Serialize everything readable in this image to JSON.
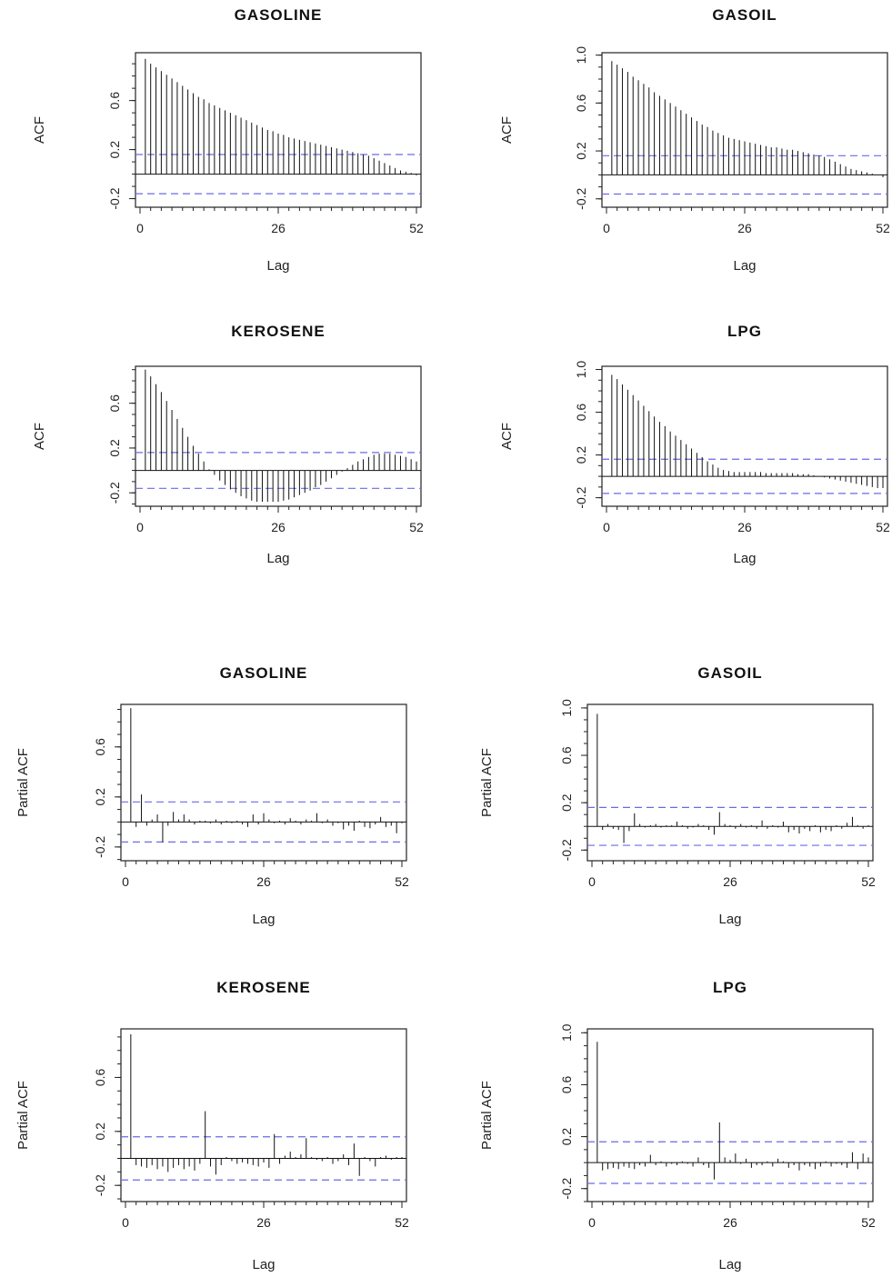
{
  "chart_data": [
    {
      "type": "bar",
      "kind": "ACF",
      "title": "GASOLINE",
      "xlabel": "Lag",
      "ylabel": "ACF",
      "xticks": [
        "0",
        "26",
        "52"
      ],
      "yticks": [
        "-0.2",
        "0.2",
        "0.6"
      ],
      "xlim": [
        0,
        52
      ],
      "ylim": [
        -0.27,
        0.99
      ],
      "ci": 0.16,
      "lags": [
        1,
        2,
        3,
        4,
        5,
        6,
        7,
        8,
        9,
        10,
        11,
        12,
        13,
        14,
        15,
        16,
        17,
        18,
        19,
        20,
        21,
        22,
        23,
        24,
        25,
        26,
        27,
        28,
        29,
        30,
        31,
        32,
        33,
        34,
        35,
        36,
        37,
        38,
        39,
        40,
        41,
        42,
        43,
        44,
        45,
        46,
        47,
        48,
        49,
        50,
        51,
        52
      ],
      "values": [
        0.94,
        0.9,
        0.87,
        0.84,
        0.81,
        0.78,
        0.75,
        0.72,
        0.69,
        0.66,
        0.63,
        0.61,
        0.58,
        0.56,
        0.54,
        0.52,
        0.5,
        0.48,
        0.46,
        0.44,
        0.42,
        0.4,
        0.38,
        0.36,
        0.35,
        0.33,
        0.32,
        0.3,
        0.29,
        0.28,
        0.27,
        0.26,
        0.25,
        0.24,
        0.23,
        0.22,
        0.21,
        0.2,
        0.19,
        0.18,
        0.17,
        0.16,
        0.15,
        0.13,
        0.11,
        0.09,
        0.07,
        0.05,
        0.03,
        0.02,
        0.01,
        -0.01
      ]
    },
    {
      "type": "bar",
      "kind": "ACF",
      "title": "GASOIL",
      "xlabel": "Lag",
      "ylabel": "ACF",
      "xticks": [
        "0",
        "26",
        "52"
      ],
      "yticks": [
        "-0.2",
        "0.2",
        "0.6",
        "1.0"
      ],
      "xlim": [
        0,
        52
      ],
      "ylim": [
        -0.27,
        1.02
      ],
      "ci": 0.16,
      "lags": [
        1,
        2,
        3,
        4,
        5,
        6,
        7,
        8,
        9,
        10,
        11,
        12,
        13,
        14,
        15,
        16,
        17,
        18,
        19,
        20,
        21,
        22,
        23,
        24,
        25,
        26,
        27,
        28,
        29,
        30,
        31,
        32,
        33,
        34,
        35,
        36,
        37,
        38,
        39,
        40,
        41,
        42,
        43,
        44,
        45,
        46,
        47,
        48,
        49,
        50,
        51,
        52
      ],
      "values": [
        0.95,
        0.92,
        0.89,
        0.86,
        0.82,
        0.79,
        0.76,
        0.73,
        0.69,
        0.66,
        0.63,
        0.6,
        0.57,
        0.54,
        0.51,
        0.48,
        0.45,
        0.42,
        0.4,
        0.37,
        0.35,
        0.33,
        0.31,
        0.3,
        0.29,
        0.28,
        0.27,
        0.26,
        0.25,
        0.24,
        0.23,
        0.23,
        0.22,
        0.21,
        0.21,
        0.2,
        0.19,
        0.18,
        0.17,
        0.16,
        0.15,
        0.13,
        0.11,
        0.09,
        0.07,
        0.05,
        0.04,
        0.03,
        0.02,
        0.01,
        0.0,
        -0.02
      ]
    },
    {
      "type": "bar",
      "kind": "ACF",
      "title": "KEROSENE",
      "xlabel": "Lag",
      "ylabel": "ACF",
      "xticks": [
        "0",
        "26",
        "52"
      ],
      "yticks": [
        "-0.2",
        "0.2",
        "0.6"
      ],
      "xlim": [
        0,
        52
      ],
      "ylim": [
        -0.32,
        0.93
      ],
      "ci": 0.16,
      "lags": [
        1,
        2,
        3,
        4,
        5,
        6,
        7,
        8,
        9,
        10,
        11,
        12,
        13,
        14,
        15,
        16,
        17,
        18,
        19,
        20,
        21,
        22,
        23,
        24,
        25,
        26,
        27,
        28,
        29,
        30,
        31,
        32,
        33,
        34,
        35,
        36,
        37,
        38,
        39,
        40,
        41,
        42,
        43,
        44,
        45,
        46,
        47,
        48,
        49,
        50,
        51,
        52
      ],
      "values": [
        0.9,
        0.84,
        0.77,
        0.7,
        0.62,
        0.54,
        0.46,
        0.38,
        0.3,
        0.22,
        0.15,
        0.08,
        0.01,
        -0.04,
        -0.09,
        -0.13,
        -0.17,
        -0.2,
        -0.23,
        -0.25,
        -0.27,
        -0.28,
        -0.28,
        -0.28,
        -0.28,
        -0.28,
        -0.27,
        -0.26,
        -0.24,
        -0.22,
        -0.2,
        -0.18,
        -0.15,
        -0.13,
        -0.1,
        -0.07,
        -0.04,
        -0.01,
        0.02,
        0.05,
        0.08,
        0.1,
        0.12,
        0.14,
        0.15,
        0.15,
        0.15,
        0.14,
        0.13,
        0.12,
        0.1,
        0.08
      ]
    },
    {
      "type": "bar",
      "kind": "ACF",
      "title": "LPG",
      "xlabel": "Lag",
      "ylabel": "ACF",
      "xticks": [
        "0",
        "26",
        "52"
      ],
      "yticks": [
        "-0.2",
        "0.2",
        "0.6",
        "1.0"
      ],
      "xlim": [
        0,
        52
      ],
      "ylim": [
        -0.28,
        1.03
      ],
      "ci": 0.16,
      "lags": [
        1,
        2,
        3,
        4,
        5,
        6,
        7,
        8,
        9,
        10,
        11,
        12,
        13,
        14,
        15,
        16,
        17,
        18,
        19,
        20,
        21,
        22,
        23,
        24,
        25,
        26,
        27,
        28,
        29,
        30,
        31,
        32,
        33,
        34,
        35,
        36,
        37,
        38,
        39,
        40,
        41,
        42,
        43,
        44,
        45,
        46,
        47,
        48,
        49,
        50,
        51,
        52
      ],
      "values": [
        0.95,
        0.91,
        0.86,
        0.81,
        0.76,
        0.71,
        0.66,
        0.61,
        0.56,
        0.51,
        0.47,
        0.42,
        0.38,
        0.34,
        0.3,
        0.26,
        0.22,
        0.18,
        0.14,
        0.11,
        0.08,
        0.06,
        0.05,
        0.04,
        0.04,
        0.04,
        0.04,
        0.04,
        0.04,
        0.03,
        0.03,
        0.03,
        0.03,
        0.03,
        0.03,
        0.02,
        0.02,
        0.02,
        0.01,
        0.0,
        -0.01,
        -0.02,
        -0.03,
        -0.04,
        -0.05,
        -0.06,
        -0.07,
        -0.08,
        -0.09,
        -0.1,
        -0.11,
        -0.11
      ]
    },
    {
      "type": "bar",
      "kind": "PACF",
      "title": "GASOLINE",
      "xlabel": "Lag",
      "ylabel": "Partial ACF",
      "xticks": [
        "0",
        "26",
        "52"
      ],
      "yticks": [
        "-0.2",
        "0.2",
        "0.6"
      ],
      "xlim": [
        0,
        52
      ],
      "ylim": [
        -0.31,
        0.94
      ],
      "ci": 0.16,
      "lags": [
        1,
        2,
        3,
        4,
        5,
        6,
        7,
        8,
        9,
        10,
        11,
        12,
        13,
        14,
        15,
        16,
        17,
        18,
        19,
        20,
        21,
        22,
        23,
        24,
        25,
        26,
        27,
        28,
        29,
        30,
        31,
        32,
        33,
        34,
        35,
        36,
        37,
        38,
        39,
        40,
        41,
        42,
        43,
        44,
        45,
        46,
        47,
        48,
        49,
        50,
        51,
        52
      ],
      "values": [
        0.91,
        -0.04,
        0.22,
        -0.03,
        0.02,
        0.06,
        -0.16,
        -0.03,
        0.08,
        0.02,
        0.06,
        0.02,
        -0.02,
        0.01,
        0.01,
        -0.01,
        0.02,
        -0.02,
        0.01,
        -0.01,
        0.01,
        -0.02,
        -0.04,
        0.06,
        -0.02,
        0.07,
        0.02,
        -0.01,
        0.01,
        -0.02,
        0.03,
        0.01,
        -0.02,
        0.02,
        0.01,
        0.07,
        -0.01,
        0.02,
        -0.03,
        -0.01,
        -0.06,
        -0.03,
        -0.07,
        0.01,
        -0.04,
        -0.05,
        -0.02,
        0.04,
        -0.04,
        -0.03,
        -0.09,
        -0.01
      ]
    },
    {
      "type": "bar",
      "kind": "PACF",
      "title": "GASOIL",
      "xlabel": "Lag",
      "ylabel": "Partial ACF",
      "xticks": [
        "0",
        "26",
        "52"
      ],
      "yticks": [
        "-0.2",
        "0.2",
        "0.6",
        "1.0"
      ],
      "xlim": [
        0,
        52
      ],
      "ylim": [
        -0.29,
        1.03
      ],
      "ci": 0.16,
      "lags": [
        1,
        2,
        3,
        4,
        5,
        6,
        7,
        8,
        9,
        10,
        11,
        12,
        13,
        14,
        15,
        16,
        17,
        18,
        19,
        20,
        21,
        22,
        23,
        24,
        25,
        26,
        27,
        28,
        29,
        30,
        31,
        32,
        33,
        34,
        35,
        36,
        37,
        38,
        39,
        40,
        41,
        42,
        43,
        44,
        45,
        46,
        47,
        48,
        49,
        50,
        51,
        52
      ],
      "values": [
        0.95,
        -0.03,
        0.02,
        -0.02,
        -0.03,
        -0.14,
        -0.04,
        0.11,
        0.02,
        -0.01,
        0.01,
        0.02,
        -0.01,
        0.01,
        0.01,
        0.04,
        0.01,
        -0.02,
        -0.01,
        0.02,
        0.01,
        -0.03,
        -0.07,
        0.12,
        0.02,
        0.01,
        -0.02,
        0.02,
        -0.01,
        0.01,
        -0.02,
        0.05,
        -0.02,
        0.01,
        -0.01,
        0.04,
        -0.05,
        -0.03,
        -0.06,
        -0.02,
        -0.04,
        0.01,
        -0.05,
        -0.03,
        -0.04,
        0.01,
        -0.02,
        0.03,
        0.08,
        0.01,
        -0.02,
        0.01
      ]
    },
    {
      "type": "bar",
      "kind": "PACF",
      "title": "KEROSENE",
      "xlabel": "Lag",
      "ylabel": "Partial ACF",
      "xticks": [
        "0",
        "26",
        "52"
      ],
      "yticks": [
        "-0.2",
        "0.2",
        "0.6"
      ],
      "xlim": [
        0,
        52
      ],
      "ylim": [
        -0.32,
        0.96
      ],
      "ci": 0.16,
      "lags": [
        1,
        2,
        3,
        4,
        5,
        6,
        7,
        8,
        9,
        10,
        11,
        12,
        13,
        14,
        15,
        16,
        17,
        18,
        19,
        20,
        21,
        22,
        23,
        24,
        25,
        26,
        27,
        28,
        29,
        30,
        31,
        32,
        33,
        34,
        35,
        36,
        37,
        38,
        39,
        40,
        41,
        42,
        43,
        44,
        45,
        46,
        47,
        48,
        49,
        50,
        51,
        52
      ],
      "values": [
        0.92,
        -0.05,
        -0.06,
        -0.07,
        -0.05,
        -0.08,
        -0.06,
        -0.1,
        -0.07,
        -0.05,
        -0.08,
        -0.06,
        -0.09,
        -0.04,
        0.35,
        -0.06,
        -0.12,
        -0.05,
        0.01,
        -0.02,
        -0.04,
        -0.03,
        -0.04,
        -0.05,
        -0.06,
        -0.03,
        -0.07,
        0.18,
        -0.04,
        0.02,
        0.05,
        0.01,
        0.03,
        0.15,
        0.01,
        -0.01,
        -0.02,
        0.01,
        -0.04,
        -0.02,
        0.03,
        -0.05,
        0.11,
        -0.13,
        0.01,
        -0.02,
        -0.06,
        0.01,
        0.02,
        -0.01,
        0.01,
        0.01
      ]
    },
    {
      "type": "bar",
      "kind": "PACF",
      "title": "LPG",
      "xlabel": "Lag",
      "ylabel": "Partial ACF",
      "xticks": [
        "0",
        "26",
        "52"
      ],
      "yticks": [
        "-0.2",
        "0.2",
        "0.6",
        "1.0"
      ],
      "xlim": [
        0,
        52
      ],
      "ylim": [
        -0.3,
        1.03
      ],
      "ci": 0.16,
      "lags": [
        1,
        2,
        3,
        4,
        5,
        6,
        7,
        8,
        9,
        10,
        11,
        12,
        13,
        14,
        15,
        16,
        17,
        18,
        19,
        20,
        21,
        22,
        23,
        24,
        25,
        26,
        27,
        28,
        29,
        30,
        31,
        32,
        33,
        34,
        35,
        36,
        37,
        38,
        39,
        40,
        41,
        42,
        43,
        44,
        45,
        46,
        47,
        48,
        49,
        50,
        51,
        52
      ],
      "values": [
        0.93,
        -0.06,
        -0.05,
        -0.04,
        -0.05,
        -0.03,
        -0.04,
        -0.05,
        -0.02,
        -0.03,
        0.06,
        -0.02,
        0.01,
        -0.03,
        -0.01,
        -0.02,
        0.01,
        -0.01,
        -0.03,
        0.04,
        -0.02,
        -0.04,
        -0.13,
        0.31,
        0.04,
        0.02,
        0.07,
        -0.01,
        0.03,
        -0.04,
        -0.02,
        -0.02,
        0.01,
        -0.03,
        0.03,
        0.01,
        -0.04,
        -0.02,
        -0.06,
        -0.02,
        -0.03,
        -0.05,
        -0.03,
        0.01,
        -0.03,
        -0.01,
        -0.02,
        -0.04,
        0.08,
        -0.05,
        0.07,
        0.04
      ]
    }
  ]
}
